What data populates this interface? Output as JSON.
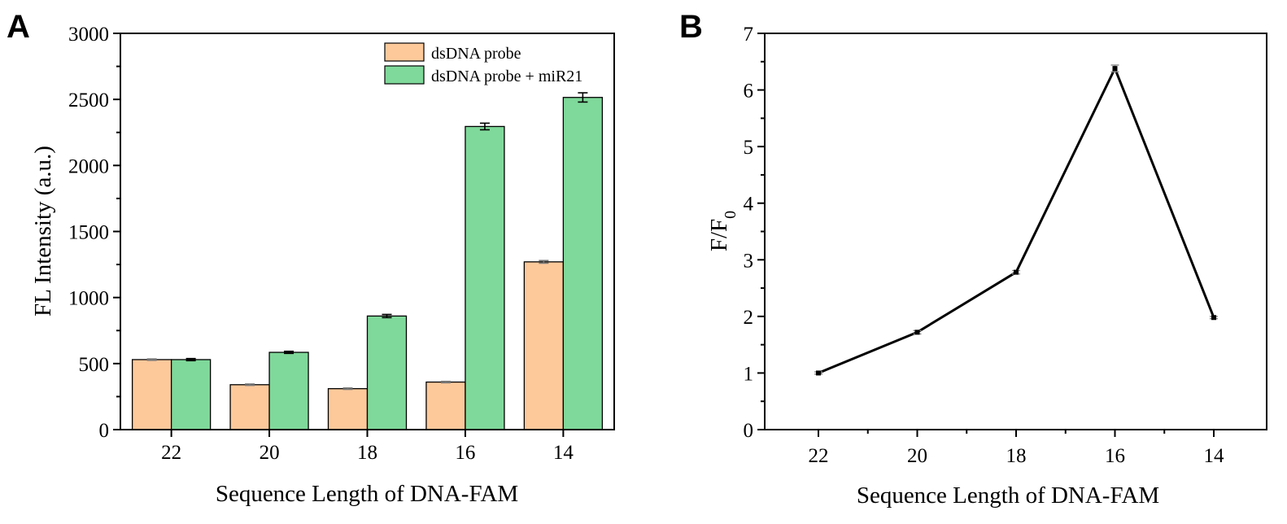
{
  "chart_data": [
    {
      "panel": "A",
      "type": "bar",
      "xlabel": "Sequence Length of DNA-FAM",
      "ylabel": "FL Intensity (a.u.)",
      "categories": [
        "22",
        "20",
        "18",
        "16",
        "14"
      ],
      "ylim": [
        0,
        3000
      ],
      "yticks": [
        "0",
        "500",
        "1000",
        "1500",
        "2000",
        "2500",
        "3000"
      ],
      "legend_position": "top-right",
      "grid": false,
      "series": [
        {
          "name": "dsDNA probe",
          "color": "#FDC99B",
          "values": [
            530,
            340,
            310,
            360,
            1270
          ],
          "errors": [
            5,
            5,
            5,
            5,
            10
          ]
        },
        {
          "name": "dsDNA probe + miR21",
          "color": "#7FD99A",
          "values": [
            530,
            585,
            860,
            2295,
            2515
          ],
          "errors": [
            8,
            8,
            12,
            25,
            35
          ]
        }
      ]
    },
    {
      "panel": "B",
      "type": "line",
      "xlabel": "Sequence Length of DNA-FAM",
      "ylabel": "F/F",
      "ylabel_sub": "0",
      "categories": [
        "22",
        "20",
        "18",
        "16",
        "14"
      ],
      "ylim": [
        0,
        7
      ],
      "yticks": [
        "0",
        "1",
        "2",
        "3",
        "4",
        "5",
        "6",
        "7"
      ],
      "grid": false,
      "series": [
        {
          "color": "#000000",
          "values": [
            1.0,
            1.72,
            2.78,
            6.38,
            1.98
          ],
          "errors": [
            0.02,
            0.03,
            0.03,
            0.06,
            0.02
          ]
        }
      ]
    }
  ]
}
